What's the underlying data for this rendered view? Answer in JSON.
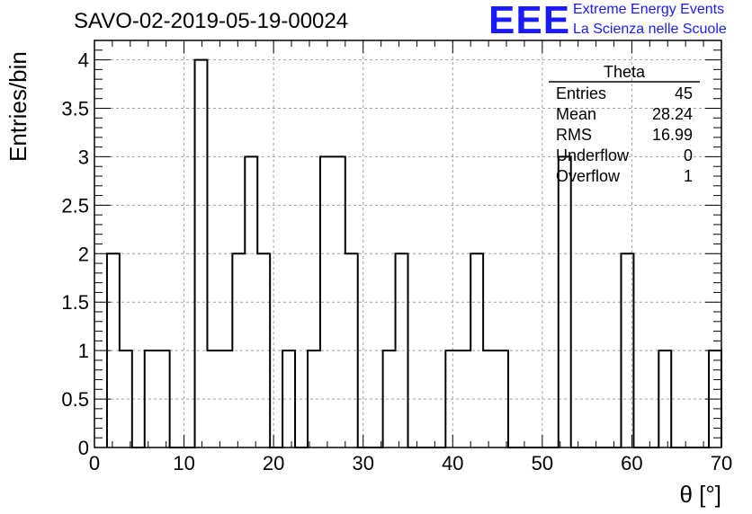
{
  "header": {
    "title": "SAVO-02-2019-05-19-00024"
  },
  "logo": {
    "mark": "EEE",
    "line1": "Extreme Energy Events",
    "line2": "La Scienza nelle Scuole",
    "color": "#1a1aff"
  },
  "stats": {
    "title": "Theta",
    "rows": [
      {
        "label": "Entries",
        "value": "45"
      },
      {
        "label": "Mean",
        "value": "28.24"
      },
      {
        "label": "RMS",
        "value": "16.99"
      },
      {
        "label": "Underflow",
        "value": "0"
      },
      {
        "label": "Overflow",
        "value": "1"
      }
    ]
  },
  "chart_data": {
    "type": "bar",
    "style": "step-histogram",
    "title": "SAVO-02-2019-05-19-00024",
    "xlabel": "θ [°]",
    "ylabel": "Entries/bin",
    "xlim": [
      0,
      70
    ],
    "ylim": [
      0,
      4.2
    ],
    "grid": true,
    "bin_width": 1.4,
    "bin_edges_start": 1.4,
    "values": [
      2,
      1,
      0,
      1,
      1,
      0,
      0,
      4,
      1,
      1,
      2,
      3,
      2,
      0,
      1,
      0,
      1,
      3,
      3,
      2,
      0,
      0,
      1,
      2,
      0,
      0,
      0,
      1,
      1,
      2,
      1,
      1,
      0,
      0,
      0,
      0,
      3,
      0,
      0,
      0,
      0,
      2,
      0,
      0,
      1,
      0,
      0,
      0,
      1
    ],
    "xticks": [
      "0",
      "10",
      "20",
      "30",
      "40",
      "50",
      "60",
      "70"
    ],
    "yticks": [
      "0",
      "0.5",
      "1",
      "1.5",
      "2",
      "2.5",
      "3",
      "3.5",
      "4"
    ],
    "line_color": "#000000",
    "grid_color": "#a0a0a0"
  }
}
